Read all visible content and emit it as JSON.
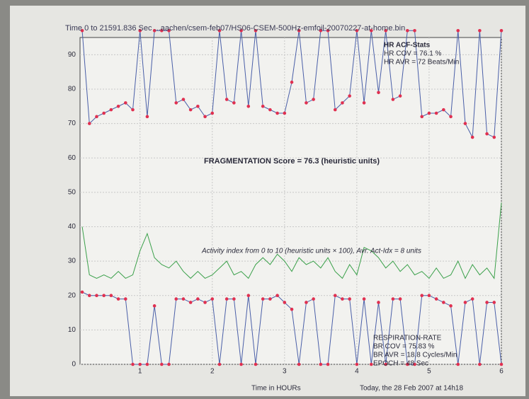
{
  "chart_data": {
    "type": "line",
    "title": "Time 0 to 21591.836 Sec ...aachen/csem-feb07/HS06-CSEM-500Hz-emfoil-20070227-at-home.bin",
    "x_label": "Time in HOURs",
    "annotations": [
      "HR ACF-Stats",
      "HR COV = 76.1 %",
      "HR AVR = 72 Beats/Min",
      "FRAGMENTATION Score = 76.3 (heuristic units)",
      "Activity index from 0 to 10 (heuristic units × 100), Avr. Act-Idx = 8 units",
      "RESPIRATION-RATE",
      "BR COV = 75.83 %",
      "BR AVR = 18.8 Cycles/Min",
      "EPOCH = 48 Sec",
      "Today, the 28 Feb 2007 at 14h18"
    ],
    "x": [
      0.2,
      0.3,
      0.4,
      0.5,
      0.6,
      0.7,
      0.8,
      0.9,
      1.0,
      1.1,
      1.2,
      1.3,
      1.4,
      1.5,
      1.6,
      1.7,
      1.8,
      1.9,
      2.0,
      2.1,
      2.2,
      2.3,
      2.4,
      2.5,
      2.6,
      2.7,
      2.8,
      2.9,
      3.0,
      3.1,
      3.2,
      3.3,
      3.4,
      3.5,
      3.6,
      3.7,
      3.8,
      3.9,
      4.0,
      4.1,
      4.2,
      4.3,
      4.4,
      4.5,
      4.6,
      4.7,
      4.8,
      4.9,
      5.0,
      5.1,
      5.2,
      5.3,
      5.4,
      5.5,
      5.6,
      5.7,
      5.8,
      5.9,
      6.0
    ],
    "series": [
      {
        "color": "#e03050",
        "line_color": "#4a5fa8",
        "marker": true,
        "values": [
          97,
          70,
          72,
          73,
          74,
          75,
          76,
          74,
          97,
          72,
          97,
          97,
          97,
          76,
          77,
          74,
          75,
          72,
          73,
          97,
          77,
          76,
          97,
          75,
          97,
          75,
          74,
          73,
          73,
          82,
          97,
          76,
          77,
          97,
          97,
          74,
          76,
          78,
          97,
          76,
          97,
          79,
          97,
          77,
          78,
          97,
          97,
          72,
          73,
          73,
          74,
          72,
          97,
          70,
          66,
          97,
          67,
          66,
          97
        ]
      },
      {
        "color": "#3aa04a",
        "line_color": "#3aa04a",
        "marker": false,
        "values": [
          40,
          26,
          25,
          26,
          25,
          27,
          25,
          26,
          33,
          38,
          31,
          29,
          28,
          30,
          27,
          25,
          27,
          25,
          26,
          28,
          30,
          26,
          27,
          25,
          29,
          31,
          29,
          32,
          30,
          27,
          31,
          29,
          30,
          28,
          31,
          27,
          25,
          29,
          26,
          34,
          33,
          31,
          28,
          30,
          27,
          29,
          26,
          27,
          25,
          28,
          25,
          26,
          30,
          25,
          29,
          26,
          28,
          25,
          47
        ]
      },
      {
        "color": "#e03050",
        "line_color": "#4a5fa8",
        "marker": true,
        "values": [
          21,
          20,
          20,
          20,
          20,
          19,
          19,
          0,
          0,
          0,
          17,
          0,
          0,
          19,
          19,
          18,
          19,
          18,
          19,
          0,
          19,
          19,
          0,
          20,
          0,
          19,
          19,
          20,
          18,
          16,
          0,
          18,
          19,
          0,
          0,
          20,
          19,
          19,
          0,
          19,
          0,
          18,
          0,
          19,
          19,
          0,
          0,
          20,
          20,
          19,
          18,
          17,
          0,
          18,
          19,
          0,
          18,
          18,
          0
        ]
      }
    ],
    "xlim": [
      0.17,
      6.0
    ],
    "xticks": [
      1,
      2,
      3,
      4,
      5,
      6
    ],
    "ylim": [
      0,
      95
    ],
    "yticks": [
      0,
      10,
      20,
      30,
      40,
      50,
      60,
      70,
      80,
      90
    ],
    "grid": true
  }
}
